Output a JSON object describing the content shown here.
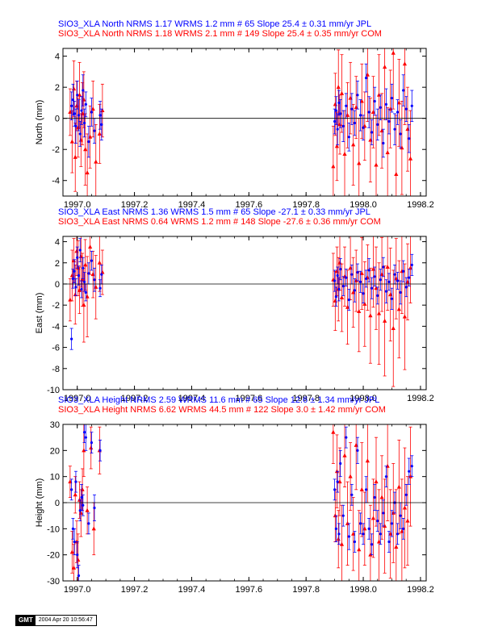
{
  "colors": {
    "jpl": "#0000ff",
    "com": "#ff0000",
    "axis": "#000000"
  },
  "footer": {
    "logo": "GMT",
    "date": "2004 Apr 20 10:56:47"
  },
  "chart_data": [
    {
      "type": "scatter",
      "title_lines": [
        "SIO3_XLA North NRMS 1.17 WRMS  1.2 mm # 65 Slope   25.4 ±  0.31 mm/yr JPL",
        "SIO3_XLA North NRMS 1.18 WRMS  2.1 mm # 149 Slope   25.4 ±  0.35 mm/yr COM"
      ],
      "ylabel": "North (mm)",
      "xlim": [
        1996.95,
        1998.22
      ],
      "ylim": [
        -5,
        4.5
      ],
      "xticks": [
        1997.0,
        1997.2,
        1997.4,
        1997.6,
        1997.8,
        1998.0,
        1998.2
      ],
      "xtick_labels": [
        "1997.0",
        "1997.2",
        "1997.4",
        "1997.6",
        "1997.8",
        "1998.0",
        "1998.2"
      ],
      "yticks": [
        -4,
        -2,
        0,
        2,
        4
      ],
      "zero_line": true,
      "series": [
        {
          "name": "JPL",
          "marker": "circle",
          "x": [
            1996.98,
            1996.985,
            1996.99,
            1996.995,
            1997.0,
            1997.005,
            1997.01,
            1997.015,
            1997.02,
            1997.025,
            1997.03,
            1997.04,
            1997.05,
            1997.06,
            1997.08,
            1997.085,
            1997.9,
            1997.905,
            1997.91,
            1997.915,
            1997.92,
            1997.93,
            1997.94,
            1997.95,
            1997.96,
            1997.97,
            1997.98,
            1997.99,
            1998.0,
            1998.01,
            1998.02,
            1998.03,
            1998.04,
            1998.05,
            1998.06,
            1998.07,
            1998.08,
            1998.09,
            1998.1,
            1998.11,
            1998.12,
            1998.13,
            1998.14,
            1998.15,
            1998.16,
            1998.17
          ],
          "y": [
            0.8,
            1.2,
            0.3,
            -0.5,
            1.5,
            0.2,
            -1.0,
            0.5,
            1.8,
            -0.3,
            0.9,
            -1.5,
            0.4,
            -0.8,
            0.2,
            -0.4,
            -0.2,
            0.5,
            -0.7,
            1.0,
            0.3,
            -0.5,
            0.8,
            -1.2,
            0.6,
            -0.3,
            1.5,
            0.2,
            -0.6,
            2.6,
            0.4,
            -0.9,
            1.1,
            -0.4,
            0.7,
            -1.6,
            0.9,
            -0.2,
            1.3,
            -0.7,
            0.4,
            -1.0,
            1.8,
            0.6,
            -1.3,
            0.8
          ],
          "err": [
            0.9,
            1.0,
            0.8,
            1.1,
            0.9,
            1.0,
            0.8,
            0.9,
            1.0,
            0.9,
            0.8,
            1.0,
            0.9,
            0.8,
            0.9,
            1.0,
            0.8,
            0.9,
            1.0,
            0.8,
            0.9,
            1.0,
            0.8,
            0.9,
            1.0,
            0.8,
            0.9,
            1.0,
            0.8,
            0.9,
            1.0,
            0.8,
            0.9,
            1.0,
            0.8,
            0.9,
            1.0,
            0.8,
            0.9,
            1.0,
            0.8,
            0.9,
            1.0,
            0.8,
            0.9,
            1.0
          ]
        },
        {
          "name": "COM",
          "marker": "triangle",
          "x": [
            1996.975,
            1996.982,
            1996.988,
            1996.993,
            1996.998,
            1997.003,
            1997.008,
            1997.013,
            1997.018,
            1997.023,
            1997.028,
            1997.035,
            1997.045,
            1997.055,
            1997.065,
            1997.078,
            1997.088,
            1997.895,
            1997.902,
            1997.908,
            1997.913,
            1997.918,
            1997.925,
            1997.935,
            1997.945,
            1997.955,
            1997.965,
            1997.975,
            1997.985,
            1997.995,
            1998.005,
            1998.015,
            1998.025,
            1998.035,
            1998.045,
            1998.055,
            1998.065,
            1998.075,
            1998.085,
            1998.095,
            1998.105,
            1998.115,
            1998.125,
            1998.135,
            1998.145,
            1998.155,
            1998.165
          ],
          "y": [
            0.4,
            -1.5,
            1.9,
            -2.5,
            0.8,
            -0.6,
            1.5,
            -1.4,
            0.3,
            1.2,
            -2.0,
            -3.5,
            -1.2,
            0.6,
            -2.8,
            -1.0,
            0.5,
            -3.1,
            0.9,
            -1.8,
            2.0,
            -0.4,
            1.6,
            -2.3,
            0.2,
            1.3,
            -1.7,
            0.7,
            -2.9,
            1.1,
            -0.5,
            2.8,
            -1.4,
            0.4,
            -3.0,
            1.5,
            -0.8,
            3.3,
            -2.2,
            0.6,
            4.2,
            -3.6,
            1.0,
            -1.9,
            3.5,
            -0.7,
            -2.6
          ],
          "err": [
            1.5,
            2.0,
            1.8,
            2.2,
            1.6,
            1.9,
            2.1,
            1.7,
            2.0,
            1.8,
            2.3,
            2.5,
            2.0,
            1.8,
            2.4,
            1.9,
            1.7,
            2.6,
            2.0,
            2.2,
            2.4,
            1.9,
            2.5,
            2.8,
            2.1,
            2.3,
            2.6,
            2.0,
            2.9,
            2.4,
            2.2,
            3.0,
            2.7,
            2.3,
            3.2,
            2.6,
            2.4,
            3.4,
            2.9,
            2.5,
            3.6,
            3.8,
            2.8,
            3.0,
            3.9,
            2.7,
            3.1
          ]
        }
      ]
    },
    {
      "type": "scatter",
      "title_lines": [
        "SIO3_XLA East NRMS 1.36 WRMS  1.5 mm # 65 Slope  -27.1 ±  0.33 mm/yr JPL",
        "SIO3_XLA East NRMS 0.64 WRMS  1.2 mm # 148 Slope  -27.6 ±  0.36 mm/yr COM"
      ],
      "ylabel": "East (mm)",
      "xlim": [
        1996.95,
        1998.22
      ],
      "ylim": [
        -10,
        4.5
      ],
      "xticks": [
        1997.0,
        1997.2,
        1997.4,
        1997.6,
        1997.8,
        1998.0,
        1998.2
      ],
      "xtick_labels": [
        "1997.0",
        "1997.2",
        "1997.4",
        "1997.6",
        "1997.8",
        "1998.0",
        "1998.2"
      ],
      "yticks": [
        -10,
        -8,
        -6,
        -4,
        -2,
        0,
        2,
        4
      ],
      "zero_line": true,
      "series": [
        {
          "name": "JPL",
          "marker": "circle",
          "x": [
            1996.98,
            1996.985,
            1996.99,
            1996.995,
            1997.0,
            1997.005,
            1997.01,
            1997.015,
            1997.02,
            1997.025,
            1997.03,
            1997.04,
            1997.05,
            1997.06,
            1997.08,
            1997.085,
            1997.9,
            1997.905,
            1997.91,
            1997.915,
            1997.92,
            1997.93,
            1997.94,
            1997.95,
            1997.96,
            1997.97,
            1997.98,
            1997.99,
            1998.0,
            1998.01,
            1998.02,
            1998.03,
            1998.04,
            1998.05,
            1998.06,
            1998.07,
            1998.08,
            1998.09,
            1998.1,
            1998.11,
            1998.12,
            1998.13,
            1998.14,
            1998.15,
            1998.16,
            1998.17
          ],
          "y": [
            -5.2,
            0.5,
            1.2,
            -0.3,
            2.5,
            0.8,
            3.2,
            -0.5,
            1.5,
            0.2,
            -0.8,
            1.0,
            2.2,
            0.4,
            -0.4,
            0.9,
            0.3,
            -1.2,
            0.8,
            -0.5,
            1.4,
            -0.2,
            0.6,
            -1.5,
            0.9,
            -0.6,
            1.1,
            0.2,
            -0.9,
            0.5,
            1.3,
            -0.4,
            0.7,
            -1.1,
            0.4,
            1.6,
            -0.7,
            0.2,
            -1.4,
            0.9,
            0.3,
            -0.8,
            1.2,
            -0.3,
            0.6,
            1.8
          ],
          "err": [
            1.0,
            0.9,
            1.1,
            0.8,
            1.0,
            0.9,
            1.1,
            0.8,
            1.0,
            0.9,
            0.8,
            1.0,
            0.9,
            1.1,
            0.8,
            0.9,
            1.0,
            0.9,
            0.8,
            1.1,
            1.0,
            0.9,
            0.8,
            1.0,
            0.9,
            1.1,
            0.8,
            1.0,
            0.9,
            0.8,
            1.1,
            1.0,
            0.9,
            0.8,
            1.0,
            0.9,
            1.1,
            0.8,
            1.0,
            0.9,
            0.8,
            1.1,
            1.0,
            0.9,
            0.8,
            1.0
          ]
        },
        {
          "name": "COM",
          "marker": "triangle",
          "x": [
            1996.975,
            1996.982,
            1996.988,
            1996.993,
            1996.998,
            1997.003,
            1997.008,
            1997.013,
            1997.018,
            1997.023,
            1997.028,
            1997.035,
            1997.045,
            1997.055,
            1997.065,
            1997.078,
            1997.088,
            1997.895,
            1997.902,
            1997.908,
            1997.913,
            1997.918,
            1997.925,
            1997.935,
            1997.945,
            1997.955,
            1997.965,
            1997.975,
            1997.985,
            1997.995,
            1998.005,
            1998.015,
            1998.025,
            1998.035,
            1998.045,
            1998.055,
            1998.065,
            1998.075,
            1998.085,
            1998.095,
            1998.105,
            1998.115,
            1998.125,
            1998.135,
            1998.145,
            1998.155,
            1998.165
          ],
          "y": [
            -1.5,
            0.8,
            2.2,
            -1.0,
            3.1,
            1.5,
            -0.6,
            2.6,
            0.4,
            -2.0,
            1.8,
            -1.2,
            3.5,
            0.9,
            -0.3,
            2.0,
            1.1,
            0.4,
            -1.6,
            1.2,
            -0.5,
            2.0,
            -1.3,
            0.7,
            -2.2,
            1.5,
            -0.8,
            0.3,
            -2.6,
            1.0,
            -1.9,
            0.6,
            -3.0,
            1.4,
            -0.4,
            -2.8,
            0.9,
            -3.5,
            1.6,
            -1.0,
            -4.2,
            0.5,
            -2.4,
            1.2,
            -3.1,
            0.2,
            1.5
          ],
          "err": [
            2.0,
            2.4,
            2.1,
            2.8,
            2.3,
            2.6,
            2.2,
            2.9,
            2.5,
            3.5,
            2.4,
            3.8,
            2.6,
            2.2,
            3.0,
            2.7,
            2.1,
            2.5,
            2.8,
            2.3,
            3.0,
            2.6,
            3.2,
            2.8,
            3.5,
            3.0,
            3.3,
            2.9,
            3.8,
            3.4,
            4.0,
            3.1,
            4.5,
            3.6,
            3.9,
            4.8,
            3.5,
            5.2,
            4.1,
            4.4,
            5.5,
            3.8,
            4.6,
            4.0,
            5.0,
            3.6,
            3.3
          ]
        }
      ]
    },
    {
      "type": "scatter",
      "title_lines": [
        "SIO3_XLA Height NRMS 2.59 WRMS 11.6 mm # 65 Slope   12.6 ±  1.34 mm/yr JPL",
        "SIO3_XLA Height NRMS 6.62 WRMS 44.5 mm # 122 Slope    3.0 ±  1.42 mm/yr COM"
      ],
      "ylabel": "Height (mm)",
      "xlim": [
        1996.95,
        1998.22
      ],
      "ylim": [
        -30,
        30
      ],
      "xticks": [
        1997.0,
        1997.2,
        1997.4,
        1997.6,
        1997.8,
        1998.0,
        1998.2
      ],
      "xtick_labels": [
        "1997.0",
        "1997.2",
        "1997.4",
        "1997.6",
        "1997.8",
        "1998.0",
        "1998.2"
      ],
      "yticks": [
        -30,
        -20,
        -10,
        0,
        10,
        20,
        30
      ],
      "zero_line": true,
      "series": [
        {
          "name": "JPL",
          "marker": "circle",
          "x": [
            1996.98,
            1996.985,
            1996.99,
            1996.995,
            1997.0,
            1997.005,
            1997.01,
            1997.015,
            1997.02,
            1997.025,
            1997.03,
            1997.04,
            1997.05,
            1997.06,
            1997.08,
            1997.9,
            1997.905,
            1997.91,
            1997.915,
            1997.92,
            1997.93,
            1997.94,
            1997.95,
            1997.96,
            1997.97,
            1997.98,
            1997.99,
            1998.0,
            1998.01,
            1998.02,
            1998.03,
            1998.04,
            1998.05,
            1998.06,
            1998.07,
            1998.08,
            1998.09,
            1998.1,
            1998.11,
            1998.12,
            1998.13,
            1998.14,
            1998.15,
            1998.16,
            1998.17
          ],
          "y": [
            5.0,
            -10.0,
            -15.0,
            8.0,
            -20.0,
            -28.0,
            -3.0,
            2.0,
            -1.0,
            27.0,
            25.0,
            -8.0,
            23.0,
            -2.0,
            20.0,
            5.0,
            -10.0,
            8.0,
            -12.0,
            15.0,
            -5.0,
            25.0,
            -13.0,
            3.0,
            -15.0,
            20.0,
            -8.0,
            -12.0,
            5.0,
            -10.0,
            -16.0,
            2.0,
            -7.0,
            -12.0,
            -4.0,
            10.0,
            -15.0,
            -8.0,
            0.0,
            -12.0,
            -5.0,
            -10.0,
            3.0,
            12.0,
            14.0
          ],
          "err": [
            4,
            4,
            5,
            4,
            5,
            4,
            4,
            5,
            4,
            4,
            5,
            4,
            4,
            5,
            4,
            4,
            5,
            4,
            4,
            5,
            4,
            4,
            5,
            4,
            4,
            5,
            4,
            4,
            5,
            4,
            4,
            5,
            4,
            4,
            5,
            4,
            4,
            5,
            4,
            4,
            5,
            4,
            4,
            5,
            4
          ]
        },
        {
          "name": "COM",
          "marker": "triangle",
          "x": [
            1996.975,
            1996.982,
            1996.988,
            1996.993,
            1996.998,
            1997.003,
            1997.008,
            1997.013,
            1997.018,
            1997.023,
            1997.035,
            1997.048,
            1997.058,
            1997.078,
            1997.895,
            1997.902,
            1997.908,
            1997.913,
            1997.918,
            1997.925,
            1997.935,
            1997.945,
            1997.955,
            1997.965,
            1997.975,
            1997.985,
            1997.995,
            1998.005,
            1998.015,
            1998.025,
            1998.035,
            1998.045,
            1998.055,
            1998.065,
            1998.075,
            1998.085,
            1998.095,
            1998.105,
            1998.115,
            1998.125,
            1998.135,
            1998.145,
            1998.155,
            1998.165
          ],
          "y": [
            8.0,
            -19.0,
            -25.0,
            3.0,
            -15.0,
            -22.0,
            1.0,
            -4.0,
            5.0,
            20.0,
            -3.0,
            21.0,
            -10.0,
            20.0,
            27.0,
            -5.0,
            12.0,
            -14.0,
            8.0,
            -16.0,
            18.0,
            -8.0,
            10.0,
            -12.0,
            22.0,
            -18.0,
            5.0,
            -10.0,
            16.0,
            -20.0,
            -6.0,
            8.0,
            -15.0,
            2.0,
            -9.0,
            14.0,
            -12.0,
            -4.0,
            -17.0,
            6.0,
            -11.0,
            -2.0,
            -7.0,
            10.0
          ],
          "err": [
            6,
            8,
            9,
            7,
            8,
            10,
            7,
            9,
            8,
            10,
            9,
            8,
            10,
            9,
            12,
            10,
            14,
            11,
            13,
            15,
            12,
            16,
            13,
            14,
            17,
            15,
            18,
            14,
            16,
            19,
            15,
            17,
            20,
            16,
            18,
            21,
            17,
            19,
            22,
            18,
            20,
            23,
            17,
            19
          ]
        }
      ]
    }
  ]
}
